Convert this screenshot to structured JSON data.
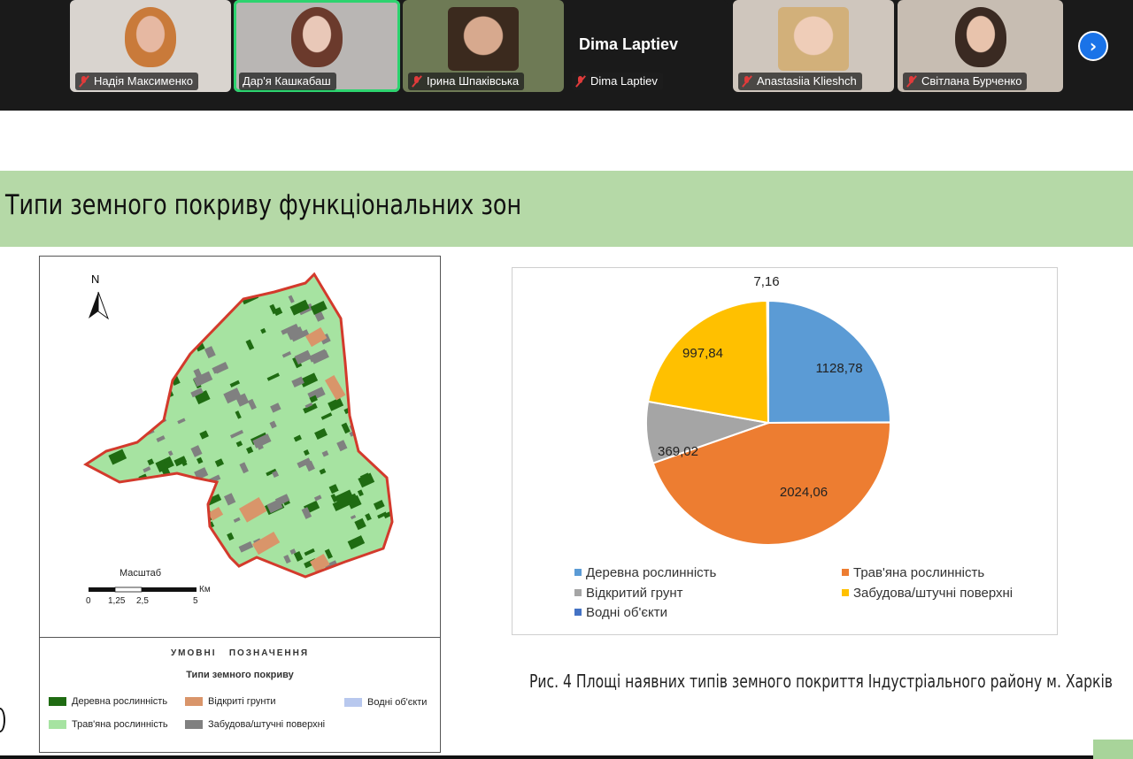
{
  "participants": [
    {
      "name": "Надія Максименко",
      "skin": "#e6b8a2",
      "hair": "#c97a3a",
      "bg": "#d9d4cf"
    },
    {
      "name": "Дар'я Кашкабаш",
      "skin": "#e9c8b8",
      "hair": "#6b3a2c",
      "bg": "#b9b6b4",
      "active": true
    },
    {
      "name": "Ірина Шпаківська",
      "skin": "#d7a98e",
      "hair": "#3b2a1e",
      "bg": "#6e7a55"
    },
    {
      "name": "Dima Laptiev",
      "no_video": true
    },
    {
      "name": "Anastasiia Klieshch",
      "skin": "#efcdb8",
      "hair": "#d2b07a",
      "bg": "#cfc6bd"
    },
    {
      "name": "Світлана Бурчeнко",
      "skin": "#e8c3ac",
      "hair": "#3a2a22",
      "bg": "#c7bdb2"
    }
  ],
  "slide": {
    "title": "Типи земного покриву функціональних зон",
    "map": {
      "north_label": "N",
      "scale_title": "Масштаб",
      "scale_unit": "Км",
      "scale_ticks": [
        "0",
        "1,25",
        "2,5",
        "5"
      ],
      "legend_heading": "УМОВНІ   ПОЗНАЧЕННЯ",
      "legend_subheading": "Типи земного покриву",
      "legend_items": [
        {
          "label": "Деревна рослинність",
          "color": "#1f6b12"
        },
        {
          "label": "Відкриті грунти",
          "color": "#d9956a"
        },
        {
          "label": "Водні об'єкти",
          "color": "#b8c8ee"
        },
        {
          "label": "Трав'яна рослинність",
          "color": "#a6e3a1"
        },
        {
          "label": "Забудова/штучні поверхні",
          "color": "#808080"
        }
      ],
      "colors": {
        "border": "#d33a2c",
        "grass": "#a6e3a1",
        "tree": "#1f6b12",
        "built": "#808080",
        "soil": "#d9956a"
      }
    },
    "caption": "Рис. 4 Площі наявних типів земного покриття Індустріального району м. Харків"
  },
  "chart_data": {
    "type": "pie",
    "slices": [
      {
        "label": "Деревна рослинність",
        "value": 1128.78,
        "display": "1128,78",
        "color": "#5b9bd5"
      },
      {
        "label": "Трав'яна рослинність",
        "value": 2024.06,
        "display": "2024,06",
        "color": "#ed7d31"
      },
      {
        "label": "Відкритий грунт",
        "value": 369.02,
        "display": "369,02",
        "color": "#a5a5a5"
      },
      {
        "label": "Забудова/штучні поверхні",
        "value": 997.84,
        "display": "997,84",
        "color": "#ffc000"
      },
      {
        "label": "Водні об'єкти",
        "value": 7.16,
        "display": "7,16",
        "color": "#4472c4"
      }
    ],
    "legend_placement": "bottom"
  }
}
